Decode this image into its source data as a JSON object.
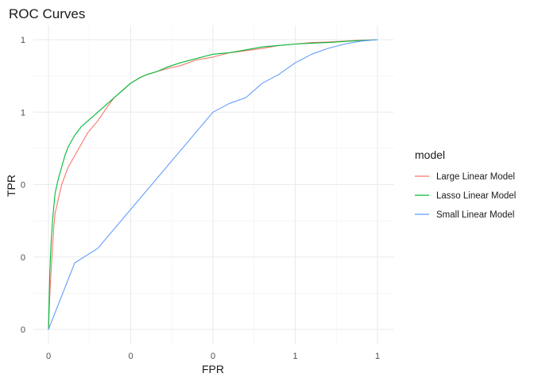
{
  "chart_data": {
    "type": "line",
    "title": "ROC Curves",
    "xlabel": "FPR",
    "ylabel": "TPR",
    "xlim": [
      0,
      1
    ],
    "ylim": [
      0,
      1
    ],
    "x_ticks": [
      0,
      0.25,
      0.5,
      0.75,
      1
    ],
    "x_tick_labels": [
      "0",
      "0",
      "0",
      "1",
      "1"
    ],
    "y_ticks": [
      0,
      0.25,
      0.5,
      0.75,
      1
    ],
    "y_tick_labels": [
      "0",
      "0",
      "0",
      "1",
      "1"
    ],
    "grid": true,
    "legend": {
      "title": "model",
      "position": "right"
    },
    "series": [
      {
        "name": "Large Linear Model",
        "color": "#F8766D",
        "x": [
          0,
          0.004,
          0.008,
          0.012,
          0.016,
          0.02,
          0.03,
          0.04,
          0.05,
          0.06,
          0.08,
          0.1,
          0.12,
          0.15,
          0.18,
          0.2,
          0.22,
          0.25,
          0.28,
          0.3,
          0.33,
          0.36,
          0.4,
          0.45,
          0.5,
          0.55,
          0.6,
          0.65,
          0.7,
          0.75,
          0.8,
          0.85,
          0.9,
          0.95,
          1
        ],
        "y": [
          0,
          0.12,
          0.2,
          0.28,
          0.35,
          0.4,
          0.45,
          0.5,
          0.53,
          0.56,
          0.6,
          0.64,
          0.68,
          0.72,
          0.77,
          0.8,
          0.82,
          0.85,
          0.87,
          0.88,
          0.89,
          0.9,
          0.91,
          0.93,
          0.94,
          0.955,
          0.962,
          0.97,
          0.98,
          0.985,
          0.99,
          0.992,
          0.995,
          0.998,
          1
        ]
      },
      {
        "name": "Lasso Linear Model",
        "color": "#00BA38",
        "x": [
          0,
          0.004,
          0.008,
          0.012,
          0.016,
          0.02,
          0.03,
          0.04,
          0.05,
          0.06,
          0.08,
          0.1,
          0.12,
          0.15,
          0.18,
          0.2,
          0.22,
          0.25,
          0.28,
          0.3,
          0.33,
          0.36,
          0.4,
          0.45,
          0.5,
          0.55,
          0.6,
          0.65,
          0.7,
          0.75,
          0.8,
          0.85,
          0.9,
          0.95,
          1
        ],
        "y": [
          0,
          0.2,
          0.3,
          0.37,
          0.42,
          0.47,
          0.52,
          0.56,
          0.6,
          0.63,
          0.67,
          0.7,
          0.72,
          0.75,
          0.78,
          0.8,
          0.82,
          0.85,
          0.87,
          0.88,
          0.89,
          0.905,
          0.92,
          0.935,
          0.95,
          0.955,
          0.965,
          0.975,
          0.98,
          0.985,
          0.988,
          0.99,
          0.994,
          0.997,
          1
        ]
      },
      {
        "name": "Small Linear Model",
        "color": "#619CFF",
        "x": [
          0,
          0.08,
          0.15,
          0.5,
          0.55,
          0.6,
          0.65,
          0.7,
          0.75,
          0.8,
          0.85,
          0.9,
          0.95,
          1
        ],
        "y": [
          0,
          0.23,
          0.28,
          0.75,
          0.78,
          0.8,
          0.85,
          0.88,
          0.92,
          0.95,
          0.97,
          0.985,
          0.995,
          1
        ]
      }
    ]
  }
}
